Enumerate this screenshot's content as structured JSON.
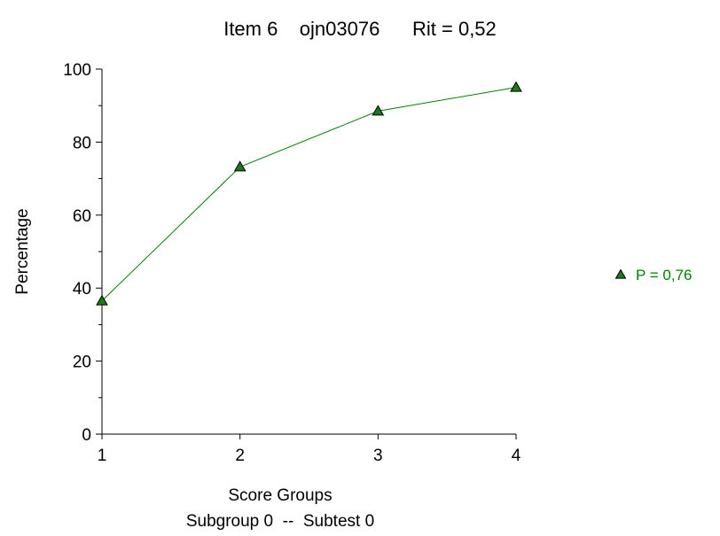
{
  "chart_data": {
    "type": "line",
    "title": "Item 6    ojn03076      Rit = 0,52",
    "xlabel": "Score Groups",
    "xlabel2": "Subgroup 0  --  Subtest 0",
    "ylabel": "Percentage",
    "x": [
      1,
      2,
      3,
      4
    ],
    "xlim": [
      1,
      4
    ],
    "ylim": [
      0,
      100
    ],
    "yticks_major": [
      0,
      20,
      40,
      60,
      80,
      100
    ],
    "yticks_minor_step": 10,
    "grid": false,
    "legend_position": "right",
    "series": [
      {
        "name": "P = 0,76",
        "values": [
          36.5,
          73.2,
          88.5,
          95.0
        ],
        "color": "#008000",
        "marker": "triangle",
        "marker_fill": "#1a7a1a"
      }
    ]
  }
}
